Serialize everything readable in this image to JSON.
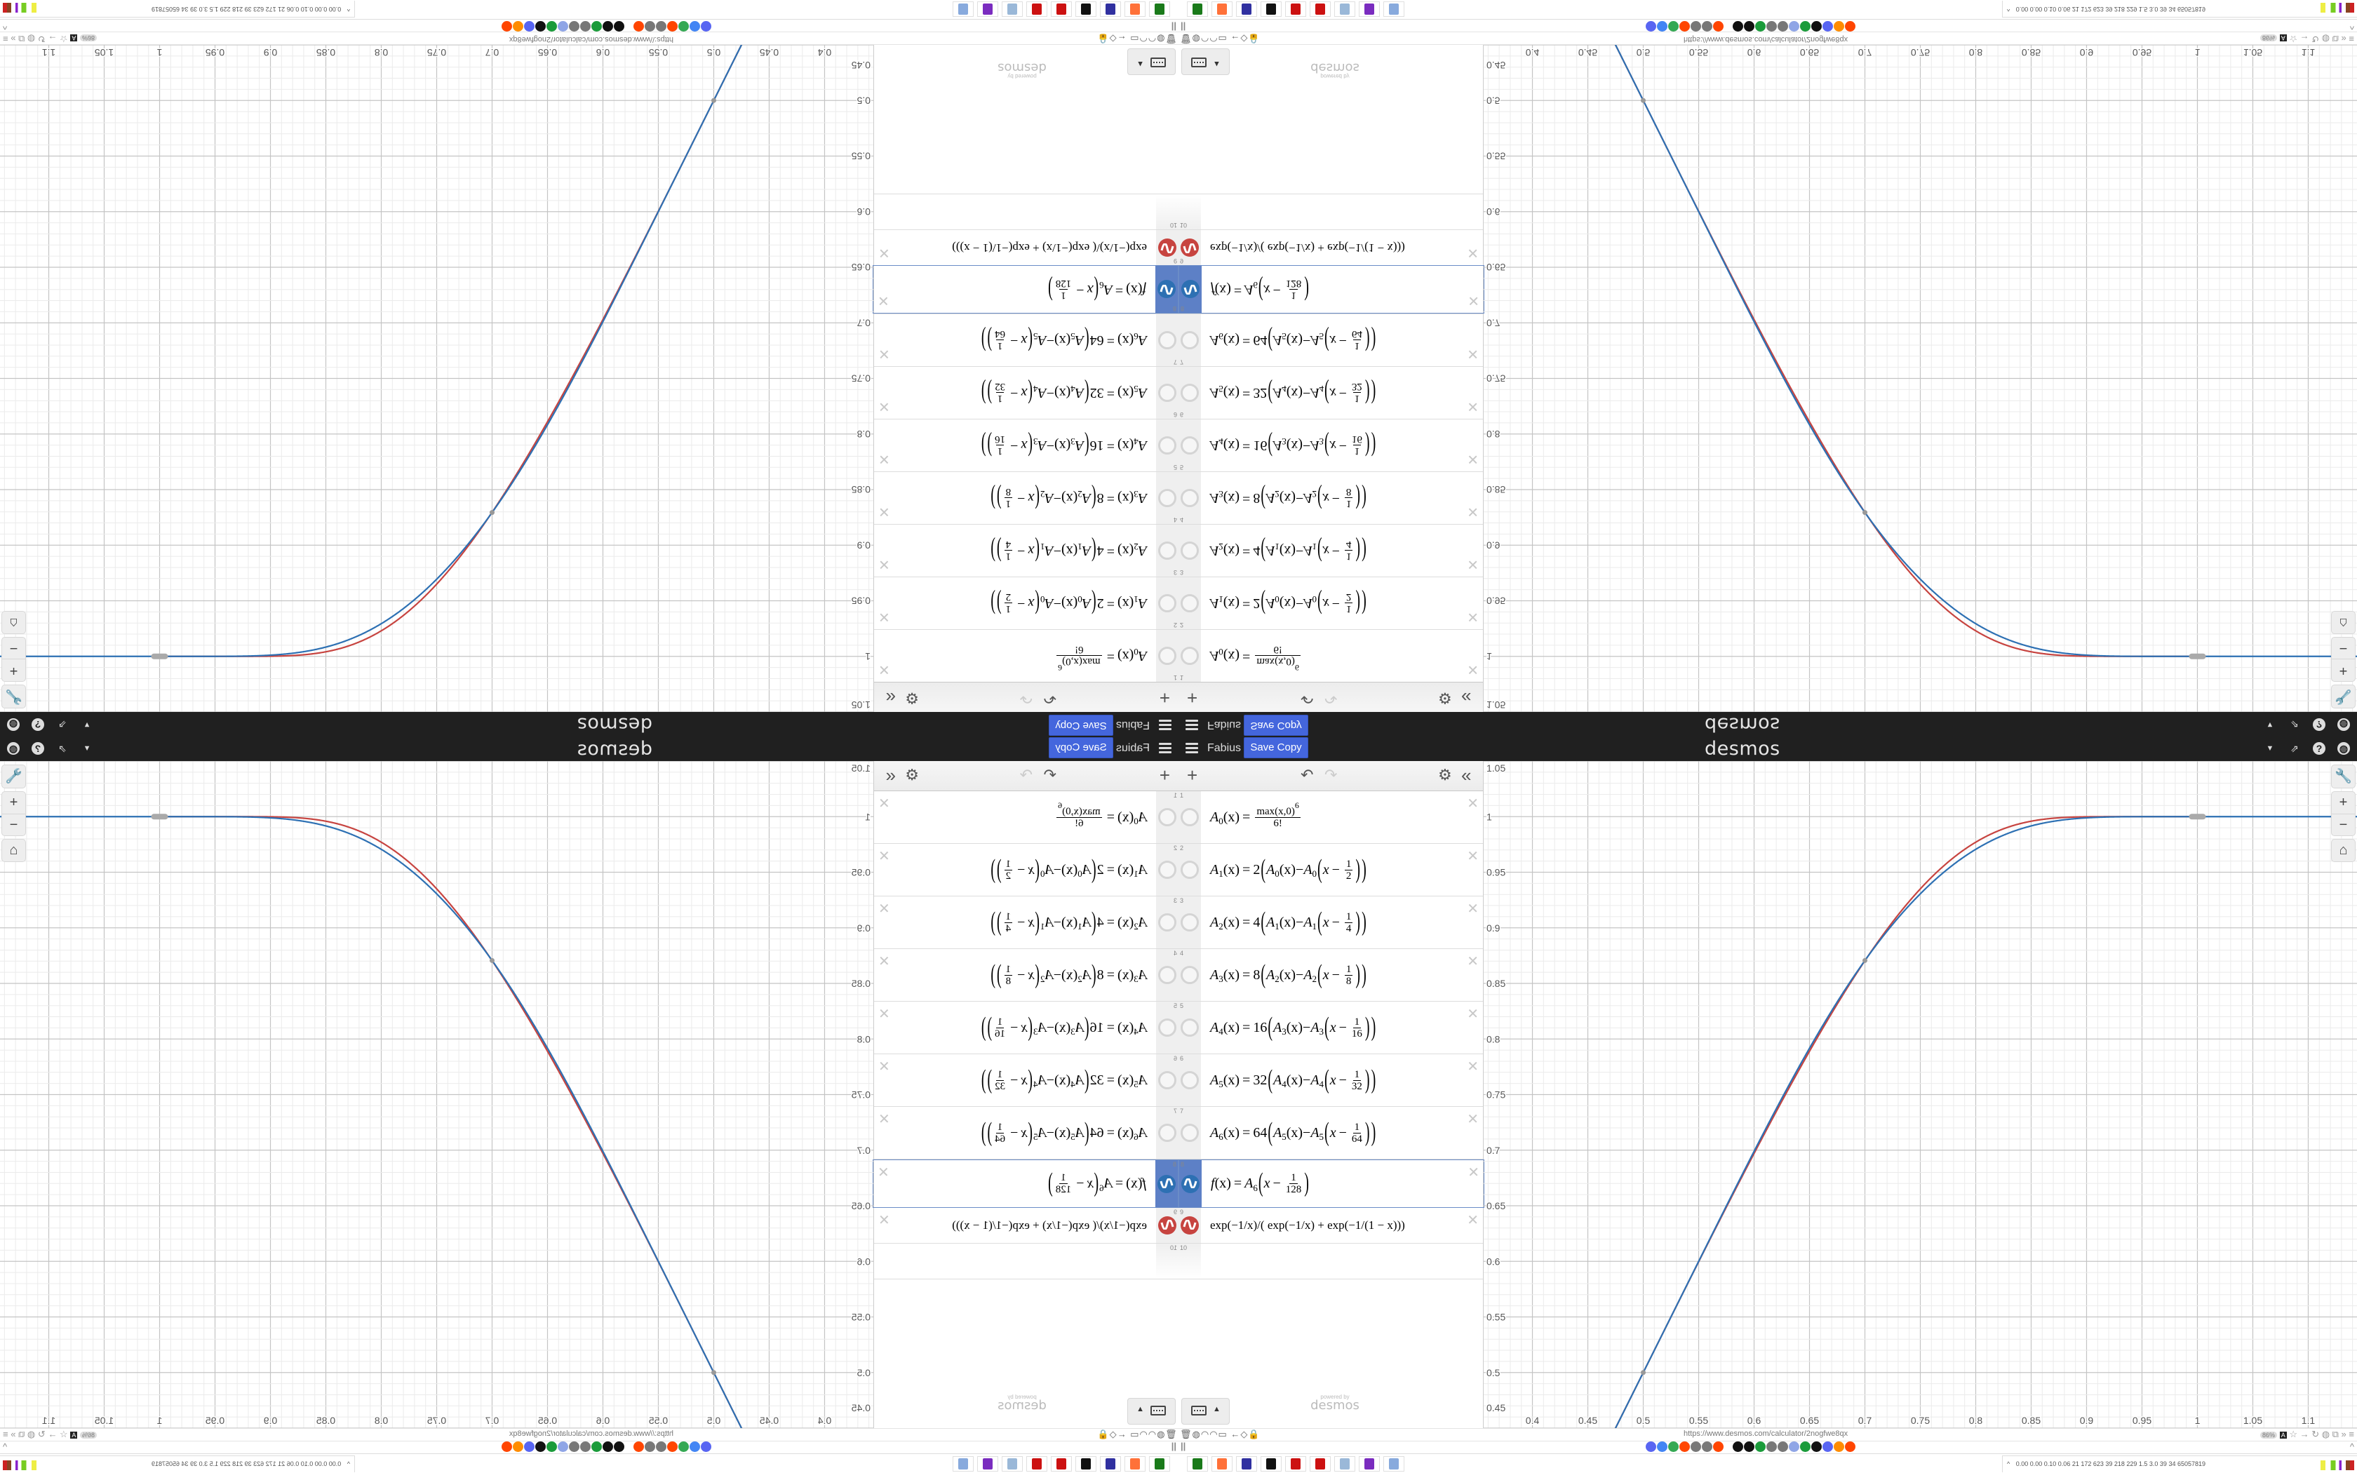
{
  "header": {
    "menu_icon": "hamburger-icon",
    "graph_title": "Fabius",
    "save_copy_label": "Save Copy",
    "logo": "desmos",
    "right_icons": [
      "caret-down-icon",
      "share-icon",
      "help-icon",
      "globe-icon"
    ]
  },
  "toolbar": {
    "add_icon": "+",
    "undo_icon": "↶",
    "redo_icon": "↷",
    "settings_icon": "⚙",
    "collapse_icon": "«"
  },
  "math_symbols": {
    "eq": "=",
    "minus": "−",
    "lparen": "(",
    "rparen": ")",
    "close": "✕"
  },
  "expressions": [
    {
      "number": "1",
      "kind": "base",
      "name": "A",
      "sub": "0",
      "arg": "(x)",
      "num": "max(x,0)",
      "sup": "6",
      "den": "6!",
      "visible": false
    },
    {
      "number": "2",
      "kind": "rec",
      "name": "A",
      "sub": "1",
      "arg": "(x)",
      "coef": "2",
      "inner_sub": "0",
      "var": "x",
      "num": "1",
      "den": "2",
      "visible": false
    },
    {
      "number": "3",
      "kind": "rec",
      "name": "A",
      "sub": "2",
      "arg": "(x)",
      "coef": "4",
      "inner_sub": "1",
      "var": "x",
      "num": "1",
      "den": "4",
      "visible": false
    },
    {
      "number": "4",
      "kind": "rec",
      "name": "A",
      "sub": "3",
      "arg": "(x)",
      "coef": "8",
      "inner_sub": "2",
      "var": "x",
      "num": "1",
      "den": "8",
      "visible": false
    },
    {
      "number": "5",
      "kind": "rec",
      "name": "A",
      "sub": "4",
      "arg": "(x)",
      "coef": "16",
      "inner_sub": "3",
      "var": "x",
      "num": "1",
      "den": "16",
      "visible": false
    },
    {
      "number": "6",
      "kind": "rec",
      "name": "A",
      "sub": "5",
      "arg": "(x)",
      "coef": "32",
      "inner_sub": "4",
      "var": "x",
      "num": "1",
      "den": "32",
      "visible": false
    },
    {
      "number": "7",
      "kind": "rec",
      "name": "A",
      "sub": "6",
      "arg": "(x)",
      "coef": "64",
      "inner_sub": "5",
      "var": "x",
      "num": "1",
      "den": "64",
      "visible": false
    },
    {
      "number": "8",
      "kind": "shift",
      "name": "f",
      "arg": "(x)",
      "inner_name": "A",
      "inner_sub": "6",
      "var": "x",
      "num": "1",
      "den": "128",
      "visible": true,
      "color": "#2d70b3",
      "selected": true
    },
    {
      "number": "9",
      "kind": "plain",
      "text": "exp(−1/x)/( exp(−1/x) + exp(−1/(1 − x)))",
      "visible": true,
      "color": "#c74440"
    },
    {
      "number": "10",
      "kind": "empty"
    }
  ],
  "keypad_button": {
    "icon": "keyboard-icon",
    "caret": "▲"
  },
  "powered_by": {
    "line1": "powered by",
    "line2": "desmos"
  },
  "graph_controls": {
    "settings": "wrench-icon",
    "zoom_in": "+",
    "zoom_out": "−",
    "home": "⌂"
  },
  "chart_data": {
    "type": "line",
    "xlim": [
      0.356,
      1.144
    ],
    "ylim": [
      0.45,
      1.05
    ],
    "grid": true,
    "x_ticks": [
      "0.4",
      "0.45",
      "0.5",
      "0.55",
      "0.6",
      "0.65",
      "0.7",
      "0.75",
      "0.8",
      "0.85",
      "0.9",
      "0.95",
      "1",
      "1.05",
      "1.1"
    ],
    "y_ticks": [
      "0.45",
      "0.5",
      "0.55",
      "0.6",
      "0.65",
      "0.7",
      "0.75",
      "0.8",
      "0.85",
      "0.9",
      "0.95",
      "1",
      "1.05"
    ],
    "series": [
      {
        "expression": "f(x) = A_6(x − 1/128)",
        "color": "#2d70b3"
      },
      {
        "expression": "exp(−1/x)/(exp(−1/x)+exp(−1/(1−x)))",
        "color": "#c74440"
      }
    ],
    "marked_points_x": [
      0.5,
      0.7
    ]
  },
  "browser": {
    "url": "https://www.desmos.com/calculator/2nogfwe8qx",
    "zoom": "86%",
    "left_icons": "🗑◍◠◠▭ ←◇🔒",
    "right_icons": "☆ → ↻ ◍ ⧉ » ≡",
    "bookmarks_toggle": "||",
    "bookmarks_chevron": "^",
    "bookmark_colors": [
      "#5865f2",
      "#4285f4",
      "#34a853",
      "#ff4500",
      "#777",
      "#777",
      "#ff4500",
      "#111",
      "#111",
      "#1a9b3a",
      "#777",
      "#777",
      "#8fa5e6",
      "#1a9b3a",
      "#111",
      "#5865f2",
      "#ff8c00",
      "#ff4500"
    ],
    "taskbar_colors": [
      "#1a7a1a",
      "#ff7139",
      "#3030a0",
      "#111",
      "#cc1111",
      "#cc1111",
      "#9ab8d8",
      "#7a2cbf",
      "#88aadd"
    ],
    "tray_chevron": "^",
    "tray_stats": "0.00 0.00 0.10 0.06  21  172  623  39  218  229  1.5  3.0  39  34  65057819"
  }
}
